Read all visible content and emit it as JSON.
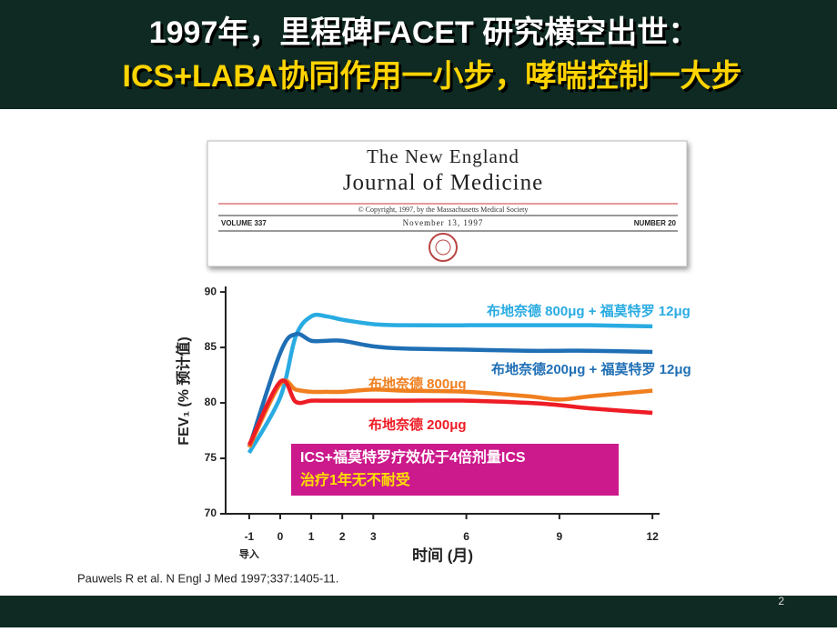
{
  "header": {
    "line1": "1997年，里程碑FACET 研究横空出世：",
    "line2": "ICS+LABA协同作用一小步，哮喘控制一大步"
  },
  "journal": {
    "name1": "The New England",
    "name2": "Journal of Medicine",
    "copyright": "© Copyright, 1997, by the Massachusetts Medical Society",
    "volume": "VOLUME 337",
    "date": "November 13, 1997",
    "number": "NUMBER 20"
  },
  "chart_data": {
    "type": "line",
    "x_label": "时间 (月)",
    "y_label": "FEV₁ (% 预计值)",
    "x_tick_note": "导入",
    "x": [
      -1,
      0,
      0.5,
      1,
      1.5,
      2,
      3,
      4,
      6,
      8,
      9,
      10,
      12
    ],
    "series": [
      {
        "name": "布地奈德 800μg + 福莫特罗 12μg",
        "color": "#29abe2",
        "values": [
          75.5,
          80.5,
          86,
          87.8,
          87.8,
          87.5,
          87.1,
          87,
          87,
          87,
          87,
          87,
          86.9
        ]
      },
      {
        "name": "布地奈德200μg + 福莫特罗 12μg",
        "color": "#1f6fb5",
        "values": [
          76,
          84.5,
          86.2,
          85.6,
          85.6,
          85.6,
          85.1,
          84.9,
          84.8,
          84.7,
          84.7,
          84.7,
          84.6
        ]
      },
      {
        "name": "布地奈德 800μg",
        "color": "#f07f1f",
        "values": [
          76,
          81.7,
          81.2,
          81,
          81,
          81,
          81.2,
          81.1,
          81,
          80.6,
          80.3,
          80.6,
          81.1
        ]
      },
      {
        "name": "布地奈德 200μg",
        "color": "#ee1c25",
        "values": [
          76.2,
          81.9,
          80.1,
          80.2,
          80.2,
          80.2,
          80.2,
          80.2,
          80.2,
          80,
          79.8,
          79.5,
          79.1
        ]
      }
    ],
    "xlim": [
      -1.76,
      12.23
    ],
    "ylim": [
      70,
      90.5
    ],
    "xticks": [
      -1,
      0,
      1,
      2,
      3,
      6,
      9,
      12
    ],
    "yticks": [
      70,
      75,
      80,
      85,
      90
    ],
    "grid": false,
    "callout": [
      "ICS+福莫特罗疗效优于4倍剂量ICS",
      "治疗1年无不耐受"
    ]
  },
  "citation": "Pauwels R et al. N Engl J Med 1997;337:1405-11.",
  "page_number": "2"
}
